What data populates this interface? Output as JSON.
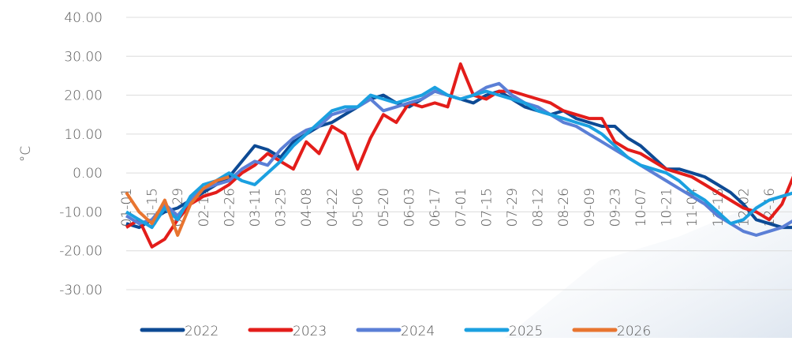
{
  "chart_data": {
    "type": "line",
    "y_label": "°C",
    "categories": [
      "01-01",
      null,
      "01-15",
      null,
      "01-29",
      null,
      "02-12",
      null,
      "02-26",
      null,
      "03-11",
      null,
      "03-25",
      null,
      "04-08",
      null,
      "04-22",
      null,
      "05-06",
      null,
      "05-20",
      null,
      "06-03",
      null,
      "06-17",
      null,
      "07-01",
      null,
      "07-15",
      null,
      "07-29",
      null,
      "08-12",
      null,
      "08-26",
      null,
      "09-09",
      null,
      "09-23",
      null,
      "10-07",
      null,
      "10-21",
      null,
      "11-04",
      null,
      "11-18",
      null,
      "12-02",
      null,
      "12-16",
      null,
      null
    ],
    "series": [
      {
        "name": "2022",
        "color": "#0d4a94",
        "values": [
          -13,
          -14,
          -12,
          -10,
          -9,
          -7,
          -5,
          -3,
          -1,
          3,
          7,
          6,
          4,
          8,
          10,
          12,
          13,
          15,
          17,
          19,
          20,
          18,
          17,
          19,
          21,
          20,
          19,
          18,
          20,
          21,
          19,
          17,
          16,
          15,
          16,
          14,
          13,
          12,
          12,
          9,
          7,
          4,
          1,
          1,
          0,
          -1,
          -3,
          -5,
          -8,
          -12,
          -13,
          -14,
          -14
        ]
      },
      {
        "name": "2023",
        "color": "#e31d1a",
        "values": [
          -14,
          -12,
          -19,
          -17,
          -12,
          -8,
          -6,
          -5,
          -3,
          0,
          2,
          5,
          3,
          1,
          8,
          5,
          12,
          10,
          1,
          9,
          15,
          13,
          18,
          17,
          18,
          17,
          28,
          20,
          19,
          21,
          21,
          20,
          19,
          18,
          16,
          15,
          14,
          14,
          8,
          6,
          5,
          3,
          1,
          0,
          -1,
          -3,
          -5,
          -7,
          -9,
          -10,
          -12,
          -8,
          0
        ]
      },
      {
        "name": "2024",
        "color": "#5b7fd6",
        "values": [
          -11,
          -13,
          -12,
          -8,
          -11,
          -7,
          -4,
          -3,
          -2,
          1,
          3,
          2,
          6,
          9,
          11,
          12,
          15,
          16,
          17,
          19,
          16,
          17,
          18,
          19,
          21,
          20,
          19,
          20,
          22,
          23,
          20,
          18,
          17,
          15,
          13,
          12,
          10,
          8,
          6,
          4,
          2,
          0,
          -2,
          -4,
          -6,
          -8,
          -11,
          -13,
          -15,
          -16,
          -15,
          -14,
          -12
        ]
      },
      {
        "name": "2025",
        "color": "#1ba0e0",
        "values": [
          -10,
          -12,
          -14,
          -9,
          -12,
          -6,
          -3,
          -2,
          0,
          -2,
          -3,
          0,
          3,
          7,
          10,
          13,
          16,
          17,
          17,
          20,
          19,
          18,
          19,
          20,
          22,
          20,
          19,
          20,
          21,
          20,
          19,
          18,
          16,
          15,
          14,
          13,
          12,
          10,
          7,
          4,
          2,
          1,
          0,
          -2,
          -5,
          -7,
          -10,
          -13,
          -12,
          -9,
          -7,
          -6,
          -5
        ]
      },
      {
        "name": "2026",
        "color": "#e87530",
        "values": [
          -5,
          -10,
          -13,
          -7,
          -16,
          -8,
          -4,
          -2,
          -1,
          null,
          null,
          null,
          null,
          null,
          null,
          null,
          null,
          null,
          null,
          null,
          null,
          null,
          null,
          null,
          null,
          null,
          null,
          null,
          null,
          null,
          null,
          null,
          null,
          null,
          null,
          null,
          null,
          null,
          null,
          null,
          null,
          null,
          null,
          null,
          null,
          null,
          null,
          null,
          null,
          null,
          null,
          null,
          null
        ]
      }
    ],
    "ylim": [
      -30,
      40
    ],
    "yticks": [
      {
        "value": -30,
        "label": "-30.00"
      },
      {
        "value": -20,
        "label": "-20.00"
      },
      {
        "value": -10,
        "label": "-10.00"
      },
      {
        "value": 0,
        "label": "0.00"
      },
      {
        "value": 10,
        "label": "10.00"
      },
      {
        "value": 20,
        "label": "20.00"
      },
      {
        "value": 30,
        "label": "30.00"
      },
      {
        "value": 40,
        "label": "40.00"
      }
    ],
    "grid": true,
    "legend": "bottom"
  }
}
